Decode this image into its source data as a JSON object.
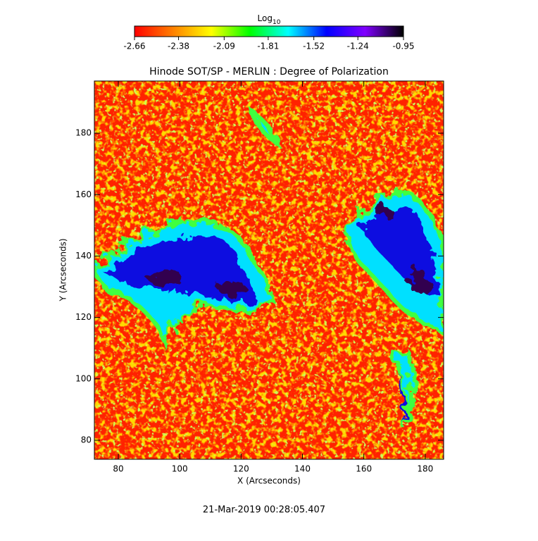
{
  "chart_data": {
    "type": "heatmap",
    "title": "Hinode SOT/SP - MERLIN : Degree of Polarization",
    "x_label": "X (Arcseconds)",
    "y_label": "Y (Arcseconds)",
    "colorbar_label": "Log",
    "colorbar_label_sub": "10",
    "timestamp": "21-Mar-2019 00:28:05.407",
    "xlim": [
      72.2,
      186
    ],
    "ylim": [
      73.8,
      197
    ],
    "xticks": [
      80,
      100,
      120,
      140,
      160,
      180
    ],
    "yticks": [
      80,
      100,
      120,
      140,
      160,
      180
    ],
    "clim": [
      -2.66,
      -0.95
    ],
    "cticks": [
      -2.66,
      -2.38,
      -2.09,
      -1.81,
      -1.52,
      -1.24,
      -0.95
    ],
    "colormap": [
      "#ff0000",
      "#ff8000",
      "#ffff00",
      "#00ff00",
      "#00ffff",
      "#0000ff",
      "#8000ff",
      "#000000"
    ]
  }
}
